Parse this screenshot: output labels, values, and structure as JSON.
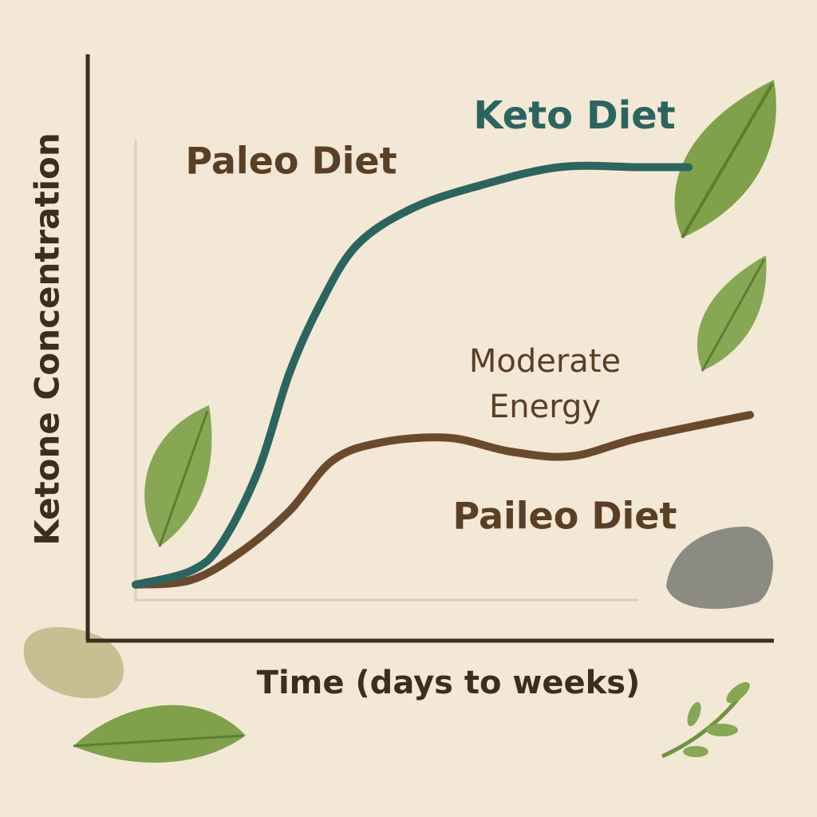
{
  "chart_data": {
    "type": "line",
    "x_label": "Time (days to weeks)",
    "y_label": "Ketone Concentration",
    "xlim": [
      0,
      100
    ],
    "ylim": [
      0,
      100
    ],
    "series": [
      {
        "name": "Keto Diet",
        "color": "#2b6560",
        "x": [
          0,
          9,
          14,
          20,
          25,
          30,
          36,
          45,
          56,
          69,
          82,
          90
        ],
        "values": [
          3,
          6,
          12,
          28,
          49,
          64,
          77,
          85,
          90,
          94,
          94,
          94
        ]
      },
      {
        "name": "Paileo Diet",
        "color": "#6b4a2b",
        "x": [
          0,
          9,
          17,
          25,
          32,
          40,
          51,
          61,
          71,
          82,
          100
        ],
        "values": [
          3,
          4,
          10,
          19,
          30,
          34,
          35,
          32,
          31,
          35,
          40
        ]
      }
    ],
    "annotations": [
      "Paleo Diet",
      "Moderate Energy"
    ]
  }
}
